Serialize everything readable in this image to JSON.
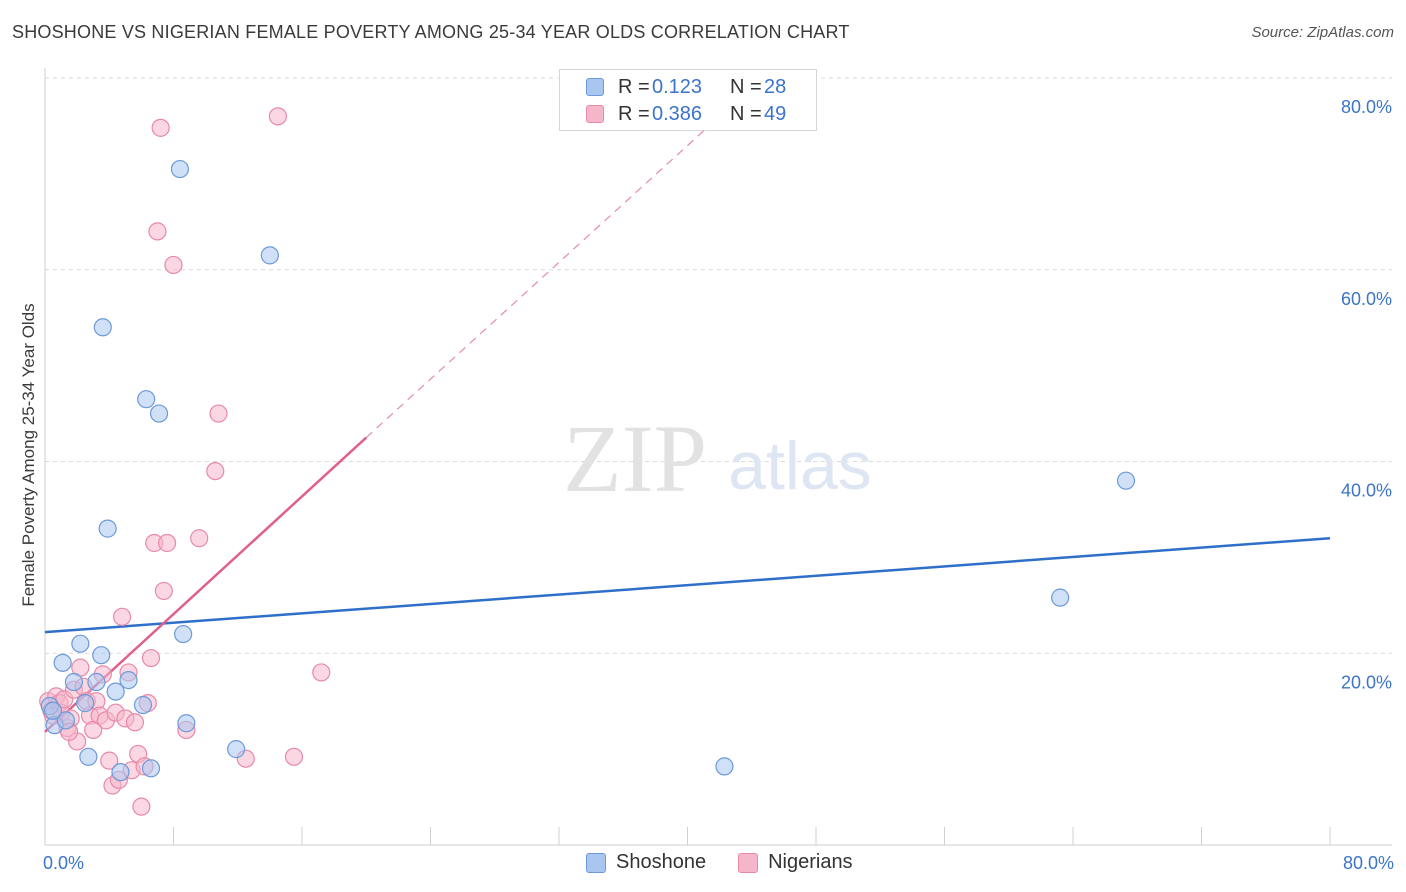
{
  "header": {
    "title": "SHOSHONE VS NIGERIAN FEMALE POVERTY AMONG 25-34 YEAR OLDS CORRELATION CHART",
    "source": "Source: ZipAtlas.com"
  },
  "watermark": {
    "zip": "ZIP",
    "atlas": "atlas"
  },
  "legend": {
    "rows": [
      {
        "r_label": "R =",
        "r_value": "0.123",
        "n_label": "N =",
        "n_value": "28"
      },
      {
        "r_label": "R =",
        "r_value": "0.386",
        "n_label": "N =",
        "n_value": "49"
      }
    ]
  },
  "bottom_legend": {
    "items": [
      "Shoshone",
      "Nigerians"
    ]
  },
  "colors": {
    "shoshone_fill": "#a9c6f0",
    "shoshone_stroke": "#6d9ad8",
    "shoshone_line": "#2e6fca",
    "nigerians_fill": "#f6b6ca",
    "nigerians_stroke": "#e88aa8",
    "nigerians_line": "#e0608c",
    "tick_label": "#3b74c8",
    "grid": "#d9d9d9"
  },
  "chart_data": {
    "type": "scatter",
    "ylabel": "Female Poverty Among 25-34 Year Olds",
    "xlabel": "",
    "xlim": [
      0,
      80
    ],
    "ylim": [
      0,
      80
    ],
    "x_tick_labels": [
      "0.0%",
      "80.0%"
    ],
    "y_tick_labels": [
      "20.0%",
      "40.0%",
      "60.0%",
      "80.0%"
    ],
    "y_ticks": [
      20,
      40,
      60,
      80
    ],
    "grid": true,
    "legend_position": "top-center",
    "series": [
      {
        "name": "Shoshone",
        "points": [
          [
            0.3,
            14.5
          ],
          [
            0.6,
            12.5
          ],
          [
            1.1,
            19.0
          ],
          [
            1.3,
            13.0
          ],
          [
            1.8,
            17.0
          ],
          [
            2.2,
            21.0
          ],
          [
            2.5,
            14.8
          ],
          [
            2.7,
            9.2
          ],
          [
            3.2,
            17.0
          ],
          [
            3.5,
            19.8
          ],
          [
            3.6,
            54.0
          ],
          [
            3.9,
            33.0
          ],
          [
            4.4,
            16.0
          ],
          [
            4.7,
            7.6
          ],
          [
            5.2,
            17.2
          ],
          [
            6.1,
            14.6
          ],
          [
            6.3,
            46.5
          ],
          [
            6.6,
            8.0
          ],
          [
            7.1,
            45.0
          ],
          [
            8.4,
            70.5
          ],
          [
            8.6,
            22.0
          ],
          [
            8.8,
            12.7
          ],
          [
            11.9,
            10.0
          ],
          [
            14.0,
            61.5
          ],
          [
            42.3,
            8.2
          ],
          [
            63.2,
            25.8
          ],
          [
            67.3,
            38.0
          ],
          [
            0.5,
            14.0
          ]
        ],
        "trend": {
          "x": [
            0,
            80
          ],
          "y": [
            22.2,
            32.0
          ]
        }
      },
      {
        "name": "Nigerians",
        "points": [
          [
            0.2,
            15.0
          ],
          [
            0.4,
            14.0
          ],
          [
            0.5,
            13.5
          ],
          [
            0.7,
            15.5
          ],
          [
            0.9,
            14.8
          ],
          [
            1.0,
            13.8
          ],
          [
            1.2,
            15.2
          ],
          [
            1.4,
            12.2
          ],
          [
            1.6,
            13.2
          ],
          [
            1.8,
            16.2
          ],
          [
            2.0,
            10.8
          ],
          [
            2.2,
            18.5
          ],
          [
            2.4,
            16.5
          ],
          [
            2.6,
            15.0
          ],
          [
            2.8,
            13.5
          ],
          [
            3.0,
            12.0
          ],
          [
            3.2,
            15.0
          ],
          [
            3.4,
            13.5
          ],
          [
            3.6,
            17.8
          ],
          [
            3.8,
            13.0
          ],
          [
            4.0,
            8.8
          ],
          [
            4.2,
            6.2
          ],
          [
            4.4,
            13.8
          ],
          [
            4.6,
            6.8
          ],
          [
            4.8,
            23.8
          ],
          [
            5.0,
            13.2
          ],
          [
            5.2,
            18.0
          ],
          [
            5.4,
            7.8
          ],
          [
            5.6,
            12.8
          ],
          [
            5.8,
            9.5
          ],
          [
            6.0,
            4.0
          ],
          [
            6.2,
            8.2
          ],
          [
            6.4,
            14.8
          ],
          [
            6.6,
            19.5
          ],
          [
            6.8,
            31.5
          ],
          [
            7.0,
            64.0
          ],
          [
            7.2,
            74.8
          ],
          [
            7.4,
            26.5
          ],
          [
            7.6,
            31.5
          ],
          [
            8.0,
            60.5
          ],
          [
            8.8,
            12.0
          ],
          [
            9.6,
            32.0
          ],
          [
            10.6,
            39.0
          ],
          [
            10.8,
            45.0
          ],
          [
            12.5,
            9.0
          ],
          [
            14.5,
            76.0
          ],
          [
            15.5,
            9.2
          ],
          [
            17.2,
            18.0
          ],
          [
            1.5,
            11.8
          ]
        ],
        "trend": {
          "x": [
            0,
            20
          ],
          "y": [
            11.8,
            42.5
          ]
        },
        "trend_extension": {
          "x": [
            20,
            42
          ],
          "y": [
            42.5,
            76.0
          ]
        }
      }
    ]
  }
}
